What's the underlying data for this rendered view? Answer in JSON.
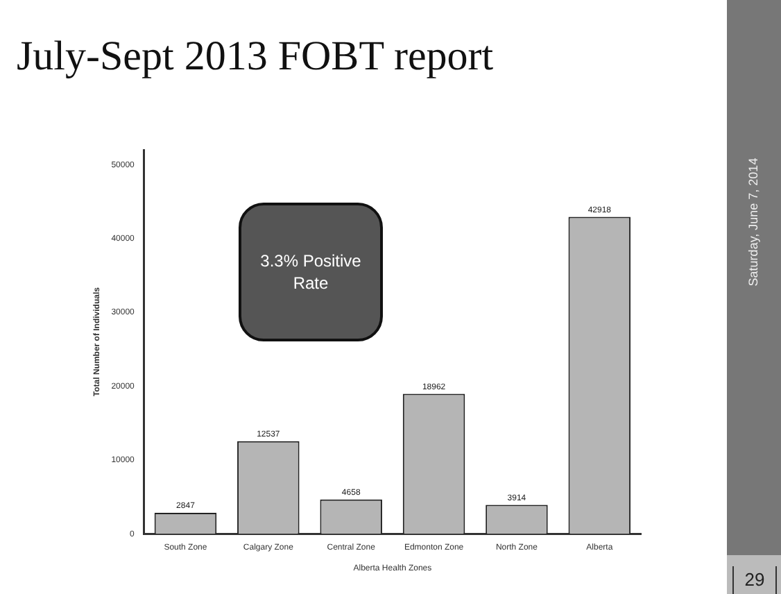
{
  "chart_data": {
    "type": "bar",
    "title": "July-Sept 2013 FOBT report",
    "xlabel": "Alberta Health Zones",
    "ylabel": "Total Number of Individuals",
    "categories": [
      "South Zone",
      "Calgary Zone",
      "Central Zone",
      "Edmonton Zone",
      "North Zone",
      "Alberta"
    ],
    "values": [
      2847,
      12537,
      4658,
      18962,
      3914,
      42918
    ],
    "color": "#b5b5b5",
    "data_labels": true,
    "ylim": [
      0,
      52000
    ],
    "yticks": [
      0,
      10000,
      20000,
      30000,
      40000,
      50000
    ],
    "grid": false,
    "legend": false,
    "annotations": [
      "3.3% Positive Rate",
      "Saturday, June 7, 2014",
      "29"
    ]
  }
}
